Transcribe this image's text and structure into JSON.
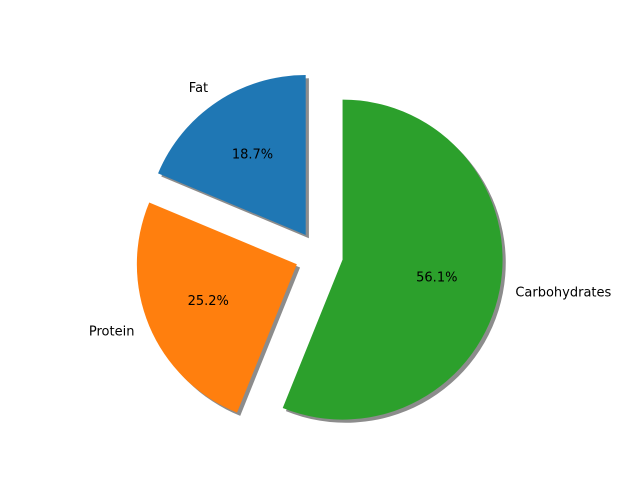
{
  "chart_data": {
    "type": "pie",
    "title": "",
    "slices": [
      {
        "label": "Fat",
        "value": 18.7,
        "percent_label": "18.7%",
        "color": "#1f77b4",
        "exploded": true
      },
      {
        "label": "Protein",
        "value": 25.2,
        "percent_label": "25.2%",
        "color": "#ff7f0e",
        "exploded": true
      },
      {
        "label": "Carbohydrates",
        "value": 56.1,
        "percent_label": "56.1%",
        "color": "#2ca02c",
        "exploded": true
      }
    ],
    "start_angle_deg": 90,
    "shadow": true,
    "legend": "none"
  }
}
